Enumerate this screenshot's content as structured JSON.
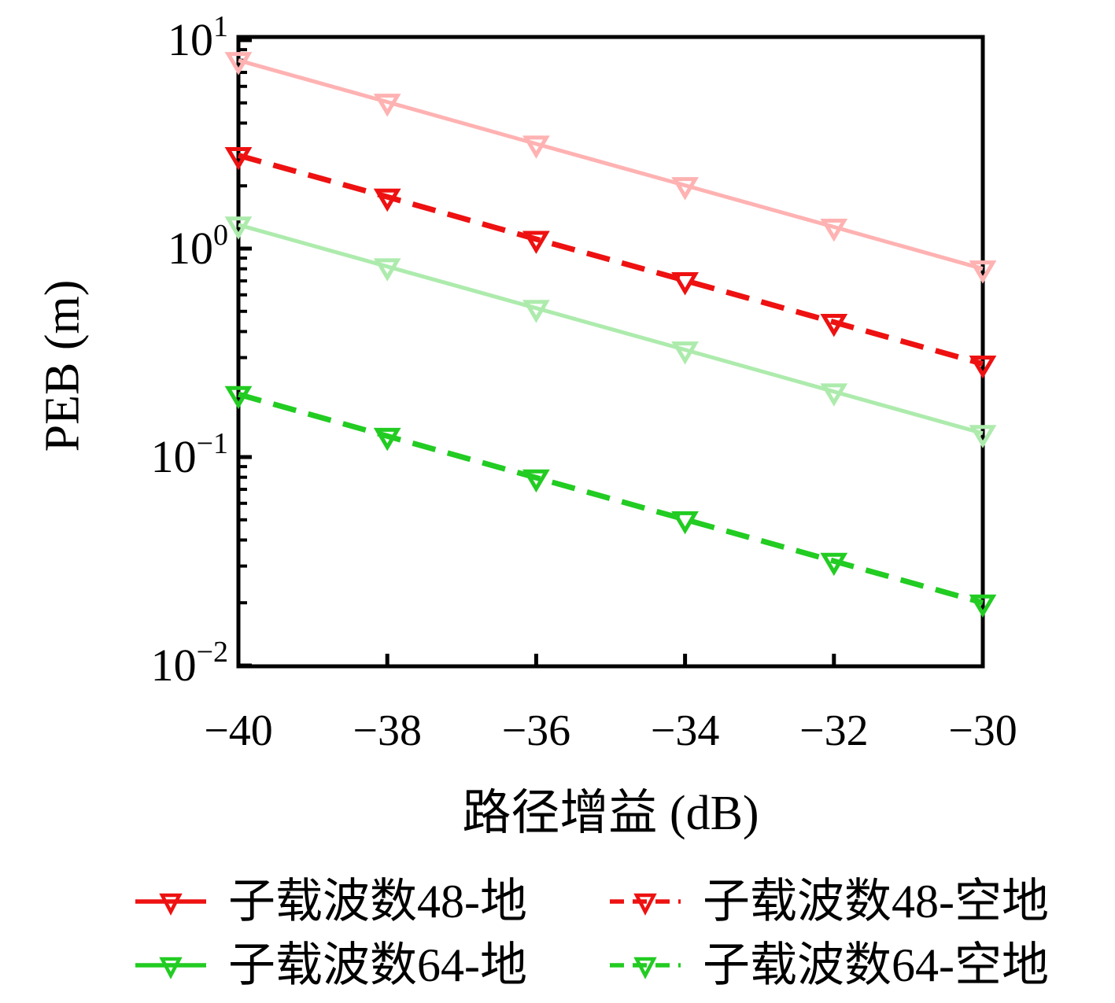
{
  "chart_data": {
    "type": "line",
    "title": "",
    "xlabel": "路径增益 (dB)",
    "ylabel": "PEB (m)",
    "x_scale": "linear",
    "y_scale": "log",
    "xlim": [
      -40,
      -30
    ],
    "ylim": [
      0.01,
      10
    ],
    "grid": false,
    "axis_color": "#000000",
    "background": "#ffffff",
    "x": [
      -40,
      -38,
      -36,
      -34,
      -32,
      -30
    ],
    "x_tick_labels": [
      "−40",
      "−38",
      "−36",
      "−34",
      "−32",
      "−30"
    ],
    "y_tick_exponents": [
      1,
      0,
      -1,
      -2
    ],
    "y_tick_labels": [
      "10^1",
      "10^0",
      "10^-1",
      "10^-2"
    ],
    "series": [
      {
        "key": "48-ground",
        "name": "子载波数48-地",
        "color": "#ffb2b2",
        "line_style": "solid",
        "marker": "triangle-down-open",
        "values": [
          8.0,
          5.05,
          3.18,
          2.01,
          1.27,
          0.8
        ]
      },
      {
        "key": "48-air-ground",
        "name": "子载波数48-空地",
        "color": "#ee1111",
        "line_style": "dashed",
        "marker": "triangle-down-open",
        "values": [
          2.8,
          1.77,
          1.11,
          0.703,
          0.444,
          0.28
        ]
      },
      {
        "key": "64-ground",
        "name": "子载波数64-地",
        "color": "#adebad",
        "line_style": "solid",
        "marker": "triangle-down-open",
        "values": [
          1.3,
          0.82,
          0.518,
          0.327,
          0.206,
          0.13
        ]
      },
      {
        "key": "64-air-ground",
        "name": "子载波数64-空地",
        "color": "#22cc22",
        "line_style": "dashed",
        "marker": "triangle-down-open",
        "values": [
          0.2,
          0.126,
          0.0796,
          0.0502,
          0.0317,
          0.02
        ]
      }
    ],
    "legend": {
      "position": "below",
      "items": [
        {
          "label": "子载波数48-地",
          "color": "#ee1111",
          "style": "solid"
        },
        {
          "label": "子载波数48-空地",
          "color": "#ee1111",
          "style": "dashed"
        },
        {
          "label": "子载波数64-地",
          "color": "#22cc22",
          "style": "solid"
        },
        {
          "label": "子载波数64-空地",
          "color": "#22cc22",
          "style": "dashed"
        }
      ]
    }
  }
}
